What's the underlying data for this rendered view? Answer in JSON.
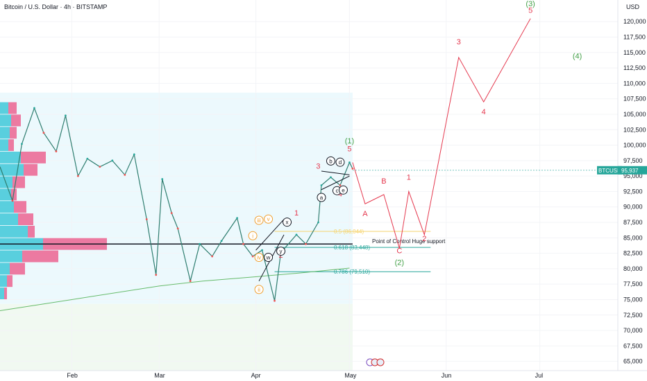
{
  "header": {
    "title": "Bitcoin / U.S. Dollar · 4h · BITSTAMP"
  },
  "colors": {
    "up": "#26a69a",
    "down": "#ef5350",
    "wave_red": "#e5394f",
    "wave_green": "#43a047",
    "fib_yellow": "#f6d36b",
    "teal": "#26a69a",
    "orange": "#f0a030",
    "ma_green": "#66bb6a"
  },
  "chart_data": {
    "type": "line",
    "title": "Bitcoin / U.S. Dollar · 4h · BITSTAMP",
    "currency": "USD",
    "ylim": [
      63500,
      123500
    ],
    "y_ticks": [
      65000,
      67500,
      70000,
      72500,
      75000,
      77500,
      80000,
      82500,
      85000,
      87500,
      90000,
      92500,
      95000,
      97500,
      100000,
      102500,
      105000,
      107500,
      110000,
      112500,
      115000,
      117500,
      120000
    ],
    "y_tick_labels": [
      "65,000",
      "67,500",
      "70,000",
      "72,500",
      "75,000",
      "77,500",
      "80,000",
      "82,500",
      "85,000",
      "87,500",
      "90,000",
      "92,500",
      "95,000",
      "97,500",
      "100,000",
      "102,500",
      "105,000",
      "107,500",
      "110,000",
      "112,500",
      "115,000",
      "117,500",
      "120,000"
    ],
    "x_ticks": [
      {
        "label": "Feb",
        "date": "2025-02-01"
      },
      {
        "label": "Mar",
        "date": "2025-03-01"
      },
      {
        "label": "Apr",
        "date": "2025-04-01"
      },
      {
        "label": "May",
        "date": "2025-05-01"
      },
      {
        "label": "Jun",
        "date": "2025-06-01"
      },
      {
        "label": "Jul",
        "date": "2025-07-01"
      }
    ],
    "xlim": [
      "2025-01-09",
      "2025-07-26"
    ],
    "price_path": [
      [
        "2025-01-09",
        96500
      ],
      [
        "2025-01-13",
        91000
      ],
      [
        "2025-01-16",
        100200
      ],
      [
        "2025-01-20",
        106000
      ],
      [
        "2025-01-23",
        102000
      ],
      [
        "2025-01-27",
        99000
      ],
      [
        "2025-01-30",
        104800
      ],
      [
        "2025-02-03",
        95000
      ],
      [
        "2025-02-06",
        97800
      ],
      [
        "2025-02-10",
        96500
      ],
      [
        "2025-02-14",
        97500
      ],
      [
        "2025-02-18",
        95200
      ],
      [
        "2025-02-21",
        98500
      ],
      [
        "2025-02-25",
        88000
      ],
      [
        "2025-02-28",
        79000
      ],
      [
        "2025-03-02",
        94500
      ],
      [
        "2025-03-05",
        89000
      ],
      [
        "2025-03-07",
        86500
      ],
      [
        "2025-03-11",
        78000
      ],
      [
        "2025-03-14",
        84000
      ],
      [
        "2025-03-18",
        82000
      ],
      [
        "2025-03-21",
        84500
      ],
      [
        "2025-03-26",
        88200
      ],
      [
        "2025-03-28",
        84000
      ],
      [
        "2025-03-31",
        82000
      ],
      [
        "2025-04-03",
        83000
      ],
      [
        "2025-04-07",
        74800
      ],
      [
        "2025-04-09",
        82600
      ],
      [
        "2025-04-14",
        85500
      ],
      [
        "2025-04-17",
        84000
      ],
      [
        "2025-04-21",
        87500
      ],
      [
        "2025-04-22",
        93500
      ],
      [
        "2025-04-25",
        94800
      ],
      [
        "2025-04-28",
        93500
      ],
      [
        "2025-05-01",
        97200
      ],
      [
        "2025-05-02",
        96200
      ]
    ],
    "price_label": {
      "symbol": "BTCUSD",
      "value": "95,937",
      "price": 95937
    },
    "projection_path": [
      [
        "2025-05-02",
        97200
      ],
      [
        "2025-05-06",
        90500
      ],
      [
        "2025-05-12",
        92000
      ],
      [
        "2025-05-17",
        83300
      ],
      [
        "2025-05-20",
        92500
      ],
      [
        "2025-05-25",
        85500
      ],
      [
        "2025-06-05",
        114200
      ],
      [
        "2025-06-13",
        107000
      ],
      [
        "2025-06-28",
        120500
      ]
    ],
    "ma_path": [
      [
        "2025-01-09",
        73200
      ],
      [
        "2025-02-01",
        75000
      ],
      [
        "2025-03-01",
        77200
      ],
      [
        "2025-03-15",
        78000
      ],
      [
        "2025-04-01",
        78700
      ],
      [
        "2025-04-15",
        79300
      ],
      [
        "2025-05-01",
        80100
      ]
    ],
    "horizontal_lines": [
      {
        "label": "Point of Control Huge support",
        "price": 84000,
        "from": "2025-01-09",
        "to": "2025-05-02",
        "color": "#131722"
      },
      {
        "label": "0.5 (86,044)",
        "price": 86044,
        "from": "2025-04-07",
        "to": "2025-05-27",
        "color": "#f6d36b"
      },
      {
        "label": "0.618 (83,448)",
        "price": 83448,
        "from": "2025-04-07",
        "to": "2025-05-27",
        "color": "#26a69a"
      },
      {
        "label": "0.786 (79,510)",
        "price": 79510,
        "from": "2025-04-07",
        "to": "2025-05-27",
        "color": "#26a69a"
      }
    ],
    "volume_profile": [
      {
        "price": 106000,
        "blue": 12,
        "pink": 12
      },
      {
        "price": 104000,
        "blue": 16,
        "pink": 14
      },
      {
        "price": 102000,
        "blue": 14,
        "pink": 10
      },
      {
        "price": 100000,
        "blue": 12,
        "pink": 8
      },
      {
        "price": 98000,
        "blue": 30,
        "pink": 36
      },
      {
        "price": 96000,
        "blue": 34,
        "pink": 20
      },
      {
        "price": 94000,
        "blue": 18,
        "pink": 18
      },
      {
        "price": 92000,
        "blue": 16,
        "pink": 8
      },
      {
        "price": 90000,
        "blue": 20,
        "pink": 18
      },
      {
        "price": 88000,
        "blue": 26,
        "pink": 22
      },
      {
        "price": 86000,
        "blue": 40,
        "pink": 10
      },
      {
        "price": 84000,
        "blue": 62,
        "pink": 92
      },
      {
        "price": 82000,
        "blue": 32,
        "pink": 52
      },
      {
        "price": 80000,
        "blue": 14,
        "pink": 22
      },
      {
        "price": 78000,
        "blue": 10,
        "pink": 8
      },
      {
        "price": 76000,
        "blue": 6,
        "pink": 4
      }
    ],
    "wave_labels": [
      {
        "text": "(3)",
        "date": "2025-06-28",
        "price": 122500,
        "color": "green",
        "circled": false
      },
      {
        "text": "5",
        "date": "2025-06-28",
        "price": 121400,
        "color": "red",
        "circled": false
      },
      {
        "text": "3",
        "date": "2025-06-05",
        "price": 116300,
        "color": "red",
        "circled": false
      },
      {
        "text": "(4)",
        "date": "2025-07-13",
        "price": 114000,
        "color": "green",
        "circled": false
      },
      {
        "text": "4",
        "date": "2025-06-13",
        "price": 105000,
        "color": "red",
        "circled": false
      },
      {
        "text": "(1)",
        "date": "2025-05-01",
        "price": 100300,
        "color": "green",
        "circled": false
      },
      {
        "text": "5",
        "date": "2025-05-01",
        "price": 99000,
        "color": "red",
        "circled": false
      },
      {
        "text": "3",
        "date": "2025-04-21",
        "price": 96200,
        "color": "red",
        "circled": false
      },
      {
        "text": "B",
        "date": "2025-05-12",
        "price": 93800,
        "color": "red",
        "circled": false
      },
      {
        "text": "1",
        "date": "2025-05-20",
        "price": 94400,
        "color": "red",
        "circled": false
      },
      {
        "text": "4",
        "date": "2025-04-28",
        "price": 91700,
        "color": "red",
        "circled": false
      },
      {
        "text": "A",
        "date": "2025-05-06",
        "price": 88500,
        "color": "red",
        "circled": false
      },
      {
        "text": "1",
        "date": "2025-04-14",
        "price": 88600,
        "color": "red",
        "circled": false
      },
      {
        "text": "2",
        "date": "2025-04-09",
        "price": 81800,
        "color": "red",
        "circled": false
      },
      {
        "text": "C",
        "date": "2025-05-17",
        "price": 82500,
        "color": "red",
        "circled": false
      },
      {
        "text": "2",
        "date": "2025-05-25",
        "price": 84500,
        "color": "red",
        "circled": false
      },
      {
        "text": "(2)",
        "date": "2025-05-17",
        "price": 80600,
        "color": "green",
        "circled": false
      },
      {
        "text": "b",
        "date": "2025-04-25",
        "price": 97100,
        "color": "black",
        "circled": true
      },
      {
        "text": "d",
        "date": "2025-04-28",
        "price": 96900,
        "color": "black",
        "circled": true
      },
      {
        "text": "a",
        "date": "2025-04-22",
        "price": 91200,
        "color": "black",
        "circled": true
      },
      {
        "text": "c",
        "date": "2025-04-27",
        "price": 92300,
        "color": "black",
        "circled": true
      },
      {
        "text": "e",
        "date": "2025-04-29",
        "price": 92400,
        "color": "black",
        "circled": true
      },
      {
        "text": "x",
        "date": "2025-04-11",
        "price": 87200,
        "color": "black",
        "circled": true
      },
      {
        "text": "y",
        "date": "2025-04-09",
        "price": 82500,
        "color": "black",
        "circled": true
      },
      {
        "text": "w",
        "date": "2025-04-05",
        "price": 81500,
        "color": "black",
        "circled": true
      },
      {
        "text": "iii",
        "date": "2025-04-02",
        "price": 87500,
        "color": "orange",
        "circled": true
      },
      {
        "text": "v",
        "date": "2025-04-05",
        "price": 87700,
        "color": "orange",
        "circled": true
      },
      {
        "text": "i",
        "date": "2025-03-31",
        "price": 85000,
        "color": "orange",
        "circled": true
      },
      {
        "text": "iv",
        "date": "2025-04-02",
        "price": 81500,
        "color": "orange",
        "circled": true
      },
      {
        "text": "ii",
        "date": "2025-04-02",
        "price": 76300,
        "color": "orange",
        "circled": true
      }
    ],
    "triangle": {
      "upper": [
        [
          "2025-04-22",
          95800
        ],
        [
          "2025-05-01",
          95200
        ]
      ],
      "lower": [
        [
          "2025-04-22",
          92800
        ],
        [
          "2025-05-01",
          95000
        ]
      ]
    },
    "wedge": {
      "upper": [
        [
          "2025-04-01",
          83000
        ],
        [
          "2025-04-10",
          88000
        ]
      ],
      "lower": [
        [
          "2025-04-02",
          78000
        ],
        [
          "2025-04-10",
          85500
        ]
      ]
    }
  }
}
